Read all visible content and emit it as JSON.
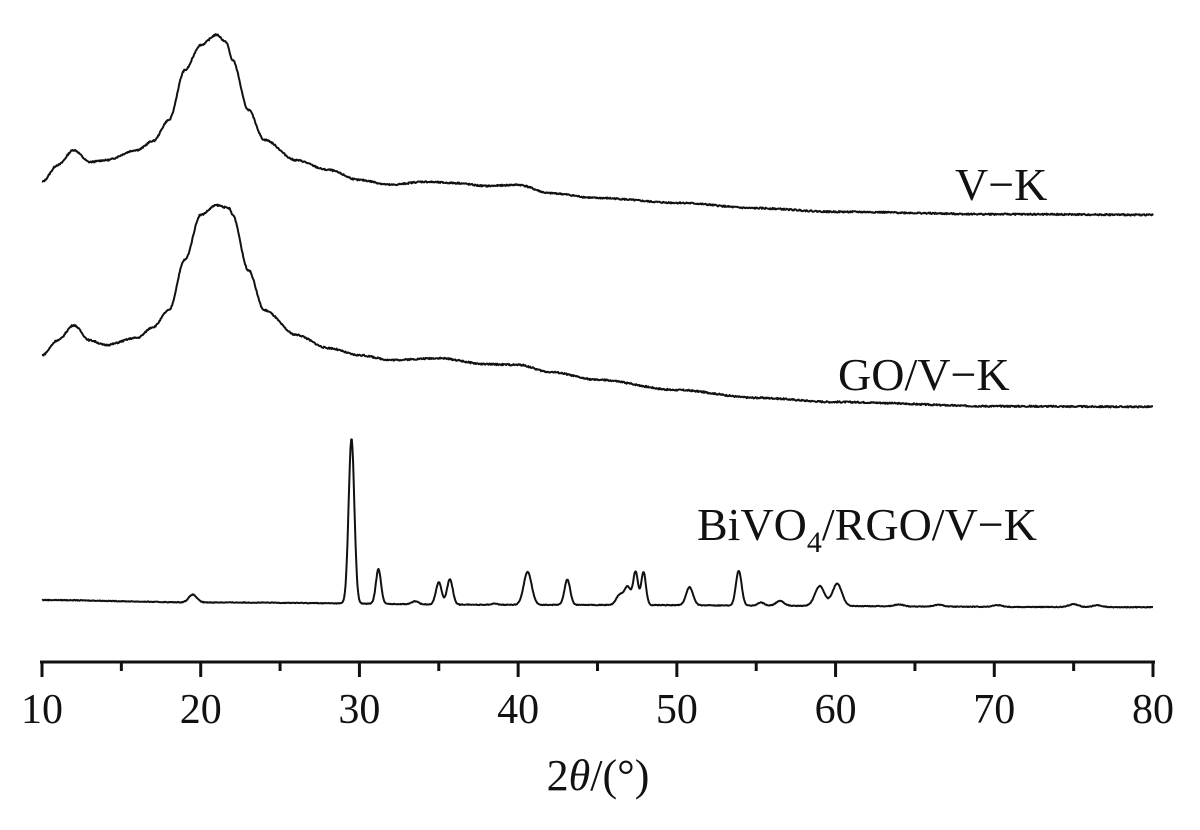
{
  "chart_data": {
    "type": "line",
    "title": "",
    "xlabel_prefix": "2",
    "xlabel_theta": "θ",
    "xlabel_suffix": "/(°)",
    "ylabel": "",
    "xlim": [
      10,
      80
    ],
    "ylim": [
      0,
      100
    ],
    "y_units": "a.u. (stacked, offset)",
    "grid": false,
    "x_ticks": [
      10,
      20,
      30,
      40,
      50,
      60,
      70,
      80
    ],
    "x_tick_labels": [
      "10",
      "20",
      "30",
      "40",
      "50",
      "60",
      "70",
      "80"
    ],
    "x_minor_ticks": [
      15,
      25,
      35,
      45,
      55,
      65,
      75
    ],
    "series": [
      {
        "name": "V−K",
        "label_parts": [
          "V−K"
        ],
        "kind": "points",
        "points": [
          [
            10,
            74.7
          ],
          [
            11,
            77.5
          ],
          [
            12,
            80
          ],
          [
            13,
            78
          ],
          [
            14,
            78.3
          ],
          [
            16,
            80
          ],
          [
            17,
            81.5
          ],
          [
            18,
            85
          ],
          [
            19,
            93.3
          ],
          [
            20,
            97.5
          ],
          [
            21,
            99.2
          ],
          [
            21.6,
            98
          ],
          [
            22,
            95
          ],
          [
            23,
            86.7
          ],
          [
            24,
            81.7
          ],
          [
            26,
            78.3
          ],
          [
            28,
            76.7
          ],
          [
            30,
            75
          ],
          [
            32,
            74.2
          ],
          [
            34,
            74.7
          ],
          [
            36,
            74.5
          ],
          [
            38,
            74
          ],
          [
            40,
            74.2
          ],
          [
            42,
            72.8
          ],
          [
            45,
            72
          ],
          [
            50,
            71.2
          ],
          [
            55,
            70.3
          ],
          [
            60,
            69.7
          ],
          [
            70,
            69.3
          ],
          [
            80,
            69.2
          ]
        ]
      },
      {
        "name": "GO/V−K",
        "label_parts": [
          "GO/V−K"
        ],
        "kind": "points",
        "points": [
          [
            10,
            45.8
          ],
          [
            11,
            48.3
          ],
          [
            12,
            50.8
          ],
          [
            13,
            48.3
          ],
          [
            14,
            47.5
          ],
          [
            16,
            48.7
          ],
          [
            17,
            50.5
          ],
          [
            18,
            53.3
          ],
          [
            19,
            61.7
          ],
          [
            20,
            69.2
          ],
          [
            21,
            70.8
          ],
          [
            21.8,
            70.3
          ],
          [
            22,
            69.2
          ],
          [
            23,
            60
          ],
          [
            24,
            53.3
          ],
          [
            26,
            49.2
          ],
          [
            28,
            47
          ],
          [
            30,
            45.8
          ],
          [
            32,
            45
          ],
          [
            35,
            45.3
          ],
          [
            38,
            44.3
          ],
          [
            40,
            44.2
          ],
          [
            42,
            43
          ],
          [
            45,
            41.7
          ],
          [
            50,
            40
          ],
          [
            55,
            38.7
          ],
          [
            60,
            38
          ],
          [
            70,
            37.3
          ],
          [
            80,
            37.2
          ]
        ]
      },
      {
        "name": "BiVO4/RGO/V−K",
        "label_parts": [
          "BiVO",
          "4",
          "/RGO/V−K"
        ],
        "kind": "peaks",
        "baseline": [
          [
            10,
            5
          ],
          [
            20,
            4.6
          ],
          [
            40,
            4.2
          ],
          [
            80,
            3.8
          ]
        ],
        "peaks": [
          [
            19.5,
            1.3,
            0.25
          ],
          [
            29.5,
            27.5,
            0.18
          ],
          [
            31.2,
            5.8,
            0.16
          ],
          [
            33.5,
            0.5,
            0.2
          ],
          [
            35.0,
            3.7,
            0.18
          ],
          [
            35.7,
            4.2,
            0.18
          ],
          [
            38.5,
            0.2,
            0.2
          ],
          [
            40.6,
            5.5,
            0.25
          ],
          [
            43.1,
            4.2,
            0.18
          ],
          [
            46.4,
            1.7,
            0.22
          ],
          [
            46.9,
            3.0,
            0.2
          ],
          [
            47.4,
            5.5,
            0.15
          ],
          [
            47.9,
            5.5,
            0.15
          ],
          [
            50.8,
            3.0,
            0.22
          ],
          [
            53.9,
            5.8,
            0.18
          ],
          [
            55.3,
            0.5,
            0.2
          ],
          [
            56.5,
            0.8,
            0.25
          ],
          [
            59.0,
            3.3,
            0.3
          ],
          [
            60.1,
            3.7,
            0.3
          ],
          [
            64.0,
            0.3,
            0.3
          ],
          [
            66.5,
            0.3,
            0.3
          ],
          [
            70.2,
            0.3,
            0.3
          ],
          [
            75.0,
            0.5,
            0.3
          ],
          [
            76.5,
            0.3,
            0.3
          ]
        ]
      }
    ]
  }
}
